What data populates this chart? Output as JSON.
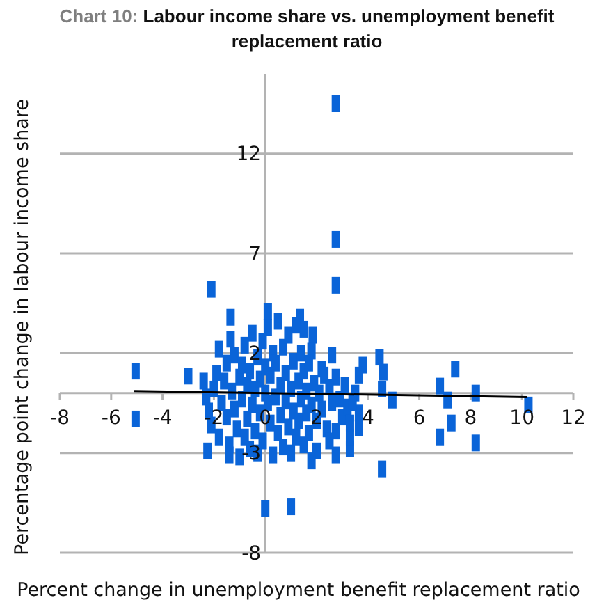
{
  "chart_data": {
    "type": "scatter",
    "title": "Chart 10: Labour income share vs. unemployment benefit replacement ratio",
    "xlabel": "Percent change in unemployment benefit replacement ratio",
    "ylabel": "Percentage point change in labour income share",
    "xlim": [
      -8,
      12
    ],
    "xticks": [
      -8,
      -6,
      -4,
      -2,
      0,
      2,
      4,
      6,
      8,
      10,
      12
    ],
    "ylim": [
      -8,
      16
    ],
    "yticks": [
      -8,
      -3,
      2,
      7,
      12
    ],
    "grid": "y",
    "marker": "square",
    "series": [
      {
        "color": "#0a64d8",
        "x": [
          2.75,
          2.75,
          2.75,
          -2.1,
          -5.05,
          -5.05,
          -3.0,
          -2.25,
          -1.4,
          -1.35,
          -1.35,
          -1.8,
          0.1,
          7.4,
          6.8,
          7.1,
          7.25,
          6.8,
          8.2,
          8.2,
          10.25,
          4.45,
          4.6,
          4.55,
          4.95,
          4.55,
          1.8,
          2.75,
          3.3,
          1.35,
          1.5,
          1.85,
          1.8,
          2.6,
          3.8,
          3.65,
          3.65,
          3.65,
          3.3,
          2.75,
          2.2,
          2.75,
          0,
          1.0,
          -2.4,
          -2.3,
          -2.2,
          -2.1,
          -2.0,
          -1.9,
          -1.8,
          -1.7,
          -1.6,
          -1.5,
          -1.5,
          -1.4,
          -1.3,
          -1.2,
          -1.2,
          -1.1,
          -1.0,
          -1.0,
          -0.9,
          -0.9,
          -0.8,
          -0.8,
          -0.7,
          -0.7,
          -0.6,
          -0.6,
          -0.5,
          -0.5,
          -0.4,
          -0.4,
          -0.3,
          -0.3,
          -0.2,
          -0.2,
          -0.1,
          -0.1,
          0,
          0,
          0.1,
          0.1,
          0.2,
          0.2,
          0.3,
          0.3,
          0.4,
          0.4,
          0.5,
          0.5,
          0.6,
          0.6,
          0.7,
          0.7,
          0.8,
          0.8,
          0.9,
          0.9,
          1.0,
          1.0,
          1.1,
          1.1,
          1.2,
          1.2,
          1.3,
          1.3,
          1.4,
          1.4,
          1.5,
          1.5,
          1.6,
          1.6,
          1.7,
          1.7,
          1.8,
          1.9,
          2.0,
          2.0,
          2.1,
          2.2,
          2.3,
          2.4,
          2.5,
          2.5,
          2.6,
          2.9,
          3.0,
          3.1,
          3.2,
          3.3,
          3.5,
          3.4
        ],
        "values": [
          14.5,
          7.7,
          5.4,
          5.2,
          1.1,
          -1.3,
          0.85,
          -2.9,
          -3.1,
          3.8,
          2.7,
          2.2,
          4.1,
          1.2,
          0.35,
          -0.35,
          -1.5,
          -2.2,
          0,
          -2.5,
          -0.6,
          1.8,
          1.05,
          0.2,
          -0.35,
          -3.8,
          -3.4,
          -3.1,
          -2.8,
          3.8,
          3.2,
          2.9,
          2.1,
          1.9,
          1.4,
          0.9,
          -1.0,
          -1.75,
          -2.2,
          -1.9,
          1.2,
          0.8,
          -5.8,
          -5.7,
          0.6,
          -0.2,
          -0.9,
          -1.6,
          0.2,
          1.0,
          -2.2,
          -0.5,
          0.6,
          1.5,
          -1.2,
          -2.6,
          0.1,
          1.9,
          -0.8,
          -1.8,
          0.8,
          -3.2,
          1.4,
          -0.3,
          -2.2,
          2.4,
          0.4,
          -1.3,
          1.1,
          -2.8,
          3.0,
          -0.6,
          0.2,
          -1.9,
          1.8,
          -3.0,
          0.7,
          -1.0,
          2.6,
          -2.4,
          0,
          1.3,
          -0.5,
          3.3,
          -1.5,
          0.9,
          -3.1,
          2.0,
          -0.2,
          1.5,
          -2.0,
          3.6,
          0.4,
          -1.1,
          2.3,
          -2.7,
          1.0,
          -0.4,
          2.9,
          -1.7,
          0.2,
          -3.0,
          1.6,
          -0.9,
          3.4,
          -2.2,
          0.6,
          -1.4,
          2.0,
          -0.3,
          -2.6,
          1.1,
          -1.0,
          0.1,
          -2.0,
          1.5,
          -0.6,
          0.5,
          -1.4,
          -2.9,
          0,
          -0.8,
          0.9,
          -1.8,
          0.3,
          -2.4,
          -0.5,
          -0.3,
          -1.2,
          0.4,
          -0.7,
          -1.5,
          0,
          -0.5
        ]
      },
      {
        "type": "line",
        "marker": "none",
        "color": "#000000",
        "x": [
          -5.1,
          10.2
        ],
        "values": [
          0.1,
          -0.2
        ]
      }
    ]
  }
}
